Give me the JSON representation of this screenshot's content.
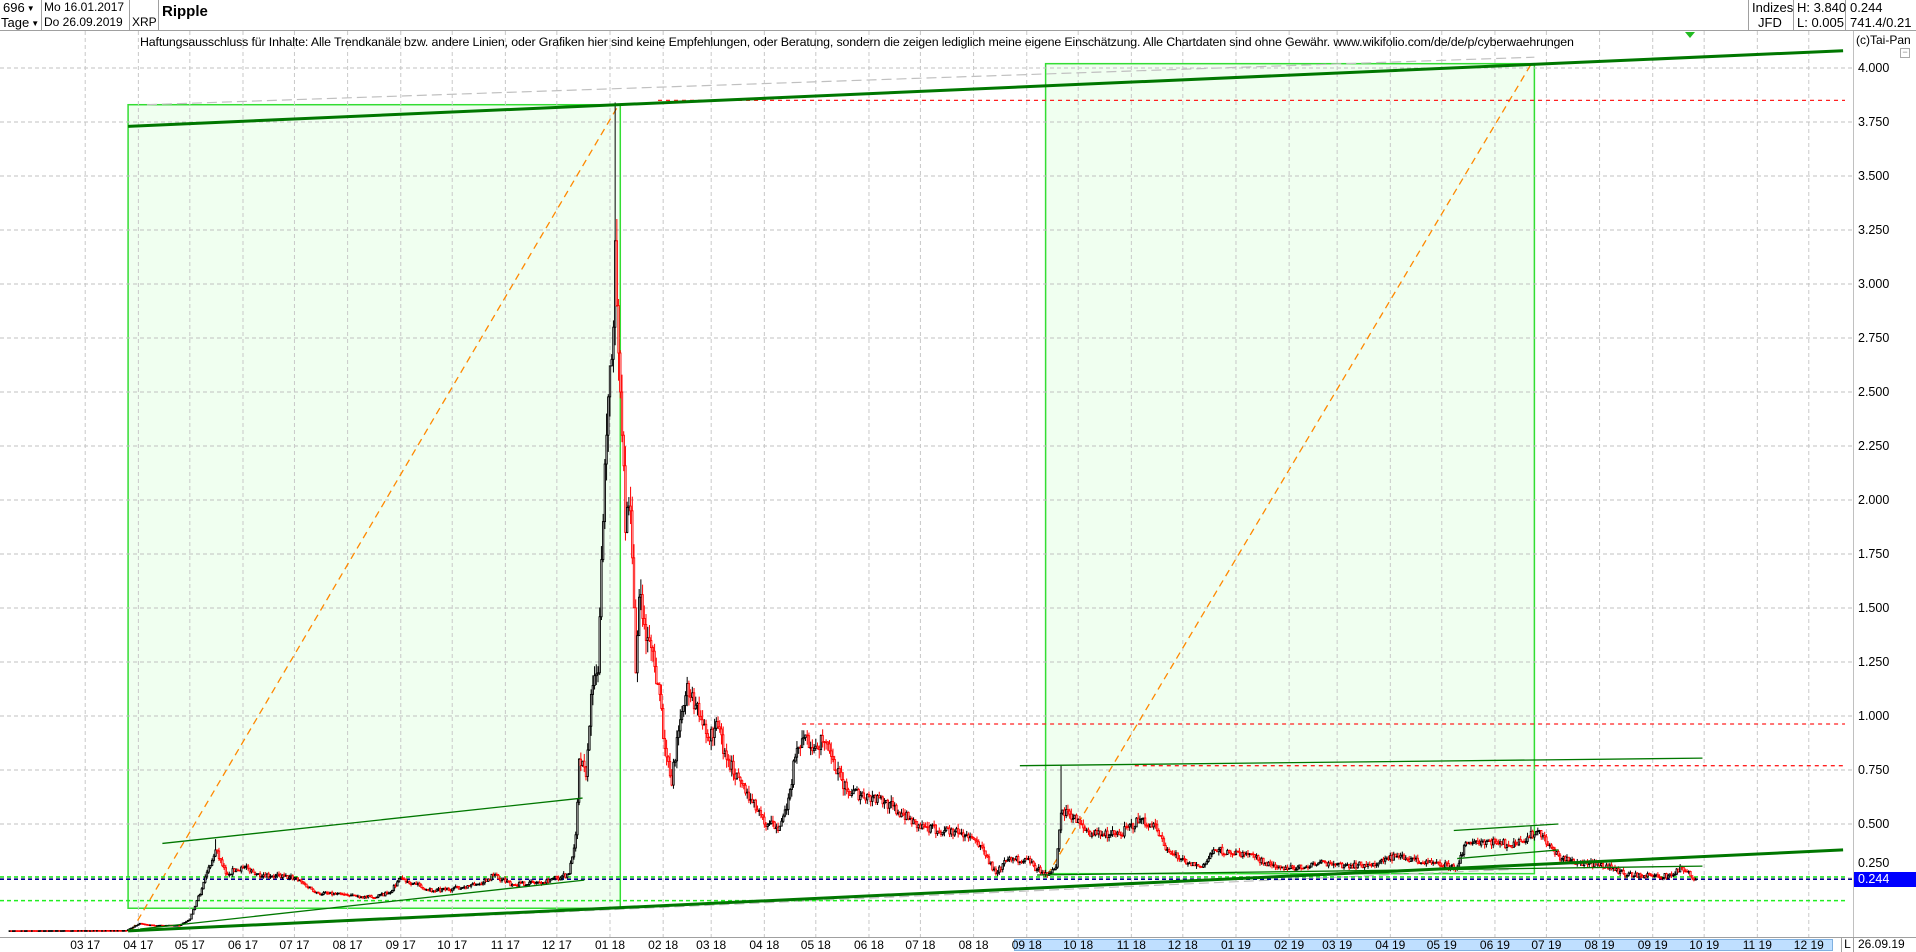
{
  "header": {
    "period_count": "696",
    "period_unit": "Tage",
    "date_from": "Mo 16.01.2017",
    "date_to": "Do 26.09.2019",
    "symbol": "XRP",
    "title": "Ripple",
    "source_top": "Indizes",
    "source_bottom": "JFD",
    "high": "H: 3.840",
    "low": "L: 0.005",
    "last": "0.244",
    "extra": "741.4/0.21"
  },
  "disclaimer": "Haftungsausschluss für Inhalte: Alle Trendkanäle bzw. andere Linien, oder Grafiken hier sind keine Empfehlungen, oder Beratung, sondern die zeigen lediglich meine eigene Einschätzung. Alle Chartdaten sind ohne Gewähr.  www.wikifolio.com/de/de/p/cyberwaehrungen",
  "copyright": "(c)Tai-Pan",
  "axis": {
    "mode": "L",
    "last_date": "26.09.19",
    "current_price_label": "0.244"
  },
  "colors": {
    "up": "#000000",
    "down": "#ff0000",
    "trend": "#007700",
    "box_fill": "#f0fff0",
    "box_border": "#33dd33",
    "fib": "#ff8800",
    "current": "#0000ff"
  },
  "chart_data": {
    "type": "candlestick",
    "ylim": [
      0,
      4.15
    ],
    "yticks": [
      "0.250",
      "0.500",
      "0.750",
      "1.000",
      "1.250",
      "1.500",
      "1.750",
      "2.000",
      "2.250",
      "2.500",
      "2.750",
      "3.000",
      "3.250",
      "3.500",
      "3.750",
      "4.000"
    ],
    "xticks": [
      {
        "date": "2017-03-01",
        "label": "03 17"
      },
      {
        "date": "2017-04-01",
        "label": "04 17"
      },
      {
        "date": "2017-05-01",
        "label": "05 17"
      },
      {
        "date": "2017-06-01",
        "label": "06 17"
      },
      {
        "date": "2017-07-01",
        "label": "07 17"
      },
      {
        "date": "2017-08-01",
        "label": "08 17"
      },
      {
        "date": "2017-09-01",
        "label": "09 17"
      },
      {
        "date": "2017-10-01",
        "label": "10 17"
      },
      {
        "date": "2017-11-01",
        "label": "11 17"
      },
      {
        "date": "2017-12-01",
        "label": "12 17"
      },
      {
        "date": "2018-01-01",
        "label": "01 18"
      },
      {
        "date": "2018-02-01",
        "label": "02 18"
      },
      {
        "date": "2018-03-01",
        "label": "03 18"
      },
      {
        "date": "2018-04-01",
        "label": "04 18"
      },
      {
        "date": "2018-05-01",
        "label": "05 18"
      },
      {
        "date": "2018-06-01",
        "label": "06 18"
      },
      {
        "date": "2018-07-01",
        "label": "07 18"
      },
      {
        "date": "2018-08-01",
        "label": "08 18"
      },
      {
        "date": "2018-09-01",
        "label": "09 18"
      },
      {
        "date": "2018-10-01",
        "label": "10 18"
      },
      {
        "date": "2018-11-01",
        "label": "11 18"
      },
      {
        "date": "2018-12-01",
        "label": "12 18"
      },
      {
        "date": "2019-01-01",
        "label": "01 19"
      },
      {
        "date": "2019-02-01",
        "label": "02 19"
      },
      {
        "date": "2019-03-01",
        "label": "03 19"
      },
      {
        "date": "2019-04-01",
        "label": "04 19"
      },
      {
        "date": "2019-05-01",
        "label": "05 19"
      },
      {
        "date": "2019-06-01",
        "label": "06 19"
      },
      {
        "date": "2019-07-01",
        "label": "07 19"
      },
      {
        "date": "2019-08-01",
        "label": "08 19"
      },
      {
        "date": "2019-09-01",
        "label": "09 19"
      },
      {
        "date": "2019-10-01",
        "label": "10 19"
      },
      {
        "date": "2019-11-01",
        "label": "11 19"
      },
      {
        "date": "2019-12-01",
        "label": "12 19"
      }
    ],
    "closes": [
      [
        "2017-01-16",
        0.006
      ],
      [
        "2017-03-25",
        0.007
      ],
      [
        "2017-04-02",
        0.04
      ],
      [
        "2017-04-10",
        0.03
      ],
      [
        "2017-04-25",
        0.03
      ],
      [
        "2017-05-01",
        0.06
      ],
      [
        "2017-05-08",
        0.2
      ],
      [
        "2017-05-12",
        0.3
      ],
      [
        "2017-05-16",
        0.38
      ],
      [
        "2017-05-22",
        0.27
      ],
      [
        "2017-06-01",
        0.3
      ],
      [
        "2017-06-10",
        0.27
      ],
      [
        "2017-06-20",
        0.26
      ],
      [
        "2017-07-01",
        0.25
      ],
      [
        "2017-07-15",
        0.18
      ],
      [
        "2017-08-01",
        0.17
      ],
      [
        "2017-08-15",
        0.16
      ],
      [
        "2017-08-25",
        0.18
      ],
      [
        "2017-09-01",
        0.25
      ],
      [
        "2017-09-10",
        0.22
      ],
      [
        "2017-09-20",
        0.19
      ],
      [
        "2017-10-01",
        0.2
      ],
      [
        "2017-10-15",
        0.22
      ],
      [
        "2017-10-25",
        0.26
      ],
      [
        "2017-11-05",
        0.22
      ],
      [
        "2017-11-20",
        0.23
      ],
      [
        "2017-12-01",
        0.25
      ],
      [
        "2017-12-08",
        0.27
      ],
      [
        "2017-12-12",
        0.45
      ],
      [
        "2017-12-14",
        0.8
      ],
      [
        "2017-12-18",
        0.72
      ],
      [
        "2017-12-21",
        1.1
      ],
      [
        "2017-12-25",
        1.2
      ],
      [
        "2017-12-28",
        1.9
      ],
      [
        "2017-12-30",
        2.3
      ],
      [
        "2018-01-03",
        2.8
      ],
      [
        "2018-01-04",
        3.2
      ],
      [
        "2018-01-05",
        2.9
      ],
      [
        "2018-01-07",
        2.5
      ],
      [
        "2018-01-08",
        2.3
      ],
      [
        "2018-01-10",
        1.85
      ],
      [
        "2018-01-13",
        1.95
      ],
      [
        "2018-01-16",
        1.2
      ],
      [
        "2018-01-18",
        1.55
      ],
      [
        "2018-01-22",
        1.35
      ],
      [
        "2018-01-26",
        1.3
      ],
      [
        "2018-01-30",
        1.1
      ],
      [
        "2018-02-02",
        0.85
      ],
      [
        "2018-02-06",
        0.68
      ],
      [
        "2018-02-09",
        0.9
      ],
      [
        "2018-02-15",
        1.15
      ],
      [
        "2018-02-20",
        1.05
      ],
      [
        "2018-02-27",
        0.9
      ],
      [
        "2018-03-05",
        0.95
      ],
      [
        "2018-03-10",
        0.8
      ],
      [
        "2018-03-18",
        0.7
      ],
      [
        "2018-03-25",
        0.6
      ],
      [
        "2018-04-01",
        0.5
      ],
      [
        "2018-04-10",
        0.49
      ],
      [
        "2018-04-15",
        0.62
      ],
      [
        "2018-04-20",
        0.85
      ],
      [
        "2018-04-24",
        0.9
      ],
      [
        "2018-05-01",
        0.86
      ],
      [
        "2018-05-06",
        0.88
      ],
      [
        "2018-05-12",
        0.75
      ],
      [
        "2018-05-20",
        0.65
      ],
      [
        "2018-06-01",
        0.63
      ],
      [
        "2018-06-10",
        0.6
      ],
      [
        "2018-06-20",
        0.55
      ],
      [
        "2018-07-01",
        0.48
      ],
      [
        "2018-07-15",
        0.47
      ],
      [
        "2018-07-28",
        0.45
      ],
      [
        "2018-08-05",
        0.4
      ],
      [
        "2018-08-14",
        0.27
      ],
      [
        "2018-08-20",
        0.33
      ],
      [
        "2018-08-31",
        0.34
      ],
      [
        "2018-09-07",
        0.29
      ],
      [
        "2018-09-14",
        0.27
      ],
      [
        "2018-09-18",
        0.3
      ],
      [
        "2018-09-21",
        0.55
      ],
      [
        "2018-09-25",
        0.56
      ],
      [
        "2018-10-05",
        0.47
      ],
      [
        "2018-10-15",
        0.45
      ],
      [
        "2018-10-25",
        0.45
      ],
      [
        "2018-11-06",
        0.52
      ],
      [
        "2018-11-12",
        0.5
      ],
      [
        "2018-11-16",
        0.47
      ],
      [
        "2018-11-20",
        0.4
      ],
      [
        "2018-11-25",
        0.36
      ],
      [
        "2018-12-05",
        0.32
      ],
      [
        "2018-12-12",
        0.3
      ],
      [
        "2018-12-20",
        0.38
      ],
      [
        "2018-12-28",
        0.37
      ],
      [
        "2019-01-08",
        0.36
      ],
      [
        "2019-01-18",
        0.32
      ],
      [
        "2019-01-30",
        0.3
      ],
      [
        "2019-02-10",
        0.3
      ],
      [
        "2019-02-22",
        0.32
      ],
      [
        "2019-03-05",
        0.31
      ],
      [
        "2019-03-20",
        0.31
      ],
      [
        "2019-04-05",
        0.35
      ],
      [
        "2019-04-20",
        0.32
      ],
      [
        "2019-05-10",
        0.3
      ],
      [
        "2019-05-14",
        0.4
      ],
      [
        "2019-05-20",
        0.42
      ],
      [
        "2019-06-01",
        0.42
      ],
      [
        "2019-06-10",
        0.4
      ],
      [
        "2019-06-20",
        0.44
      ],
      [
        "2019-06-27",
        0.47
      ],
      [
        "2019-07-02",
        0.4
      ],
      [
        "2019-07-10",
        0.34
      ],
      [
        "2019-07-20",
        0.32
      ],
      [
        "2019-08-05",
        0.31
      ],
      [
        "2019-08-15",
        0.27
      ],
      [
        "2019-08-25",
        0.26
      ],
      [
        "2019-09-10",
        0.26
      ],
      [
        "2019-09-18",
        0.3
      ],
      [
        "2019-09-21",
        0.28
      ],
      [
        "2019-09-24",
        0.25
      ],
      [
        "2019-09-26",
        0.244
      ]
    ],
    "high_overrides": [
      [
        "2018-01-04",
        3.84
      ],
      [
        "2018-09-21",
        0.77
      ],
      [
        "2017-05-16",
        0.43
      ]
    ],
    "annotations": {
      "boxes": [
        {
          "from": "2017-03-26",
          "to": "2018-01-07",
          "top": 3.83,
          "bottom": 0.11
        },
        {
          "from": "2018-09-12",
          "to": "2019-06-24",
          "top": 4.02,
          "bottom": 0.27
        }
      ],
      "fib_lines": [
        [
          [
            "2017-03-28",
            0.005
          ],
          [
            "2018-01-05",
            3.815
          ]
        ],
        [
          [
            "2018-09-13",
            0.264
          ],
          [
            "2019-06-23",
            4.03
          ]
        ]
      ],
      "thick_trendlines": [
        [
          [
            "2017-03-26",
            3.73
          ],
          [
            "2019-12-21",
            4.08
          ]
        ],
        [
          [
            "2017-03-26",
            0.005
          ],
          [
            "2019-12-21",
            0.38
          ]
        ]
      ],
      "thin_trendlines": [
        [
          [
            "2017-04-15",
            0.41
          ],
          [
            "2017-12-16",
            0.62
          ]
        ],
        [
          [
            "2017-04-02",
            0.014
          ],
          [
            "2017-12-17",
            0.24
          ]
        ],
        [
          [
            "2018-08-28",
            0.77
          ],
          [
            "2019-09-30",
            0.805
          ]
        ],
        [
          [
            "2019-05-08",
            0.47
          ],
          [
            "2019-07-08",
            0.5
          ]
        ],
        [
          [
            "2018-09-07",
            0.264
          ],
          [
            "2019-09-30",
            0.305
          ]
        ],
        [
          [
            "2019-05-10",
            0.34
          ],
          [
            "2019-07-08",
            0.38
          ]
        ]
      ],
      "gray_dashed": [
        [
          [
            "2017-04-06",
            3.83
          ],
          [
            "2019-06-24",
            4.05
          ]
        ],
        [
          [
            "2017-03-30",
            0.005
          ],
          [
            "2019-06-11",
            0.29
          ]
        ]
      ],
      "red_levels": [
        {
          "price": 3.85,
          "from": "2018-01-29"
        },
        {
          "price": 0.963,
          "from": "2018-04-23"
        },
        {
          "price": 0.77,
          "from": "2018-11-03"
        }
      ],
      "green_levels": [
        0.255,
        0.145
      ],
      "current_level": 0.244
    }
  }
}
